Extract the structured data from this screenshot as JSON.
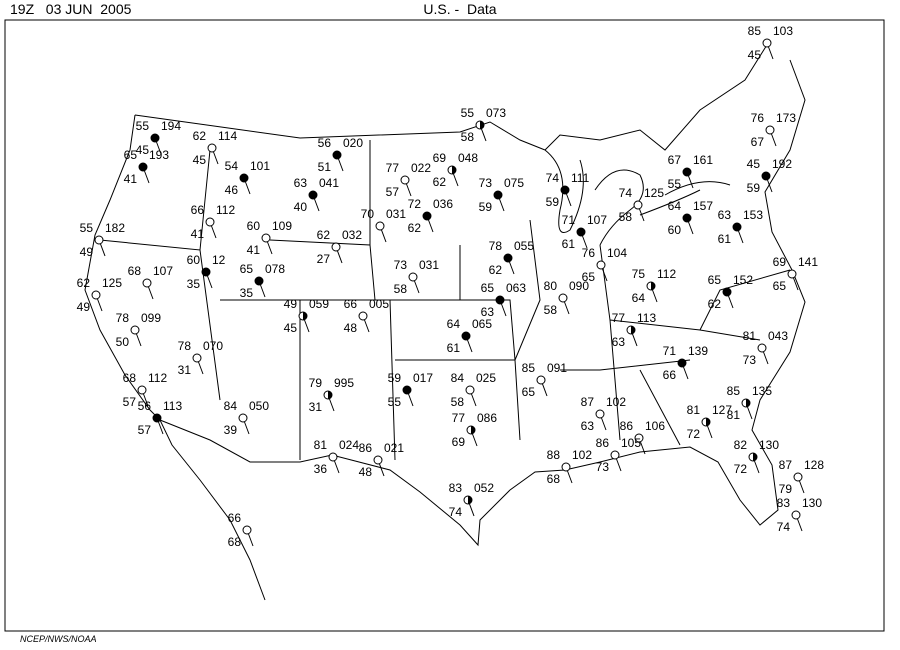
{
  "header": {
    "time": "19Z   03 JUN  2005",
    "title": "U.S. -  Data"
  },
  "footer": "NCEP/NWS/NOAA",
  "stations": [
    {
      "temp": "55",
      "pressure": "194",
      "dewpoint": "45"
    },
    {
      "temp": "65",
      "pressure": "193",
      "dewpoint": "41"
    },
    {
      "temp": "62",
      "pressure": "114",
      "dewpoint": "45"
    },
    {
      "temp": "55",
      "pressure": "182",
      "dewpoint": "49"
    },
    {
      "temp": "68",
      "pressure": "107"
    },
    {
      "temp": "60",
      "pressure": "12",
      "dewpoint": "35"
    },
    {
      "temp": "62",
      "pressure": "125",
      "dewpoint": "49"
    },
    {
      "temp": "78",
      "pressure": "099",
      "dewpoint": "50"
    },
    {
      "temp": "78",
      "pressure": "070",
      "dewpoint": "31"
    },
    {
      "temp": "68",
      "pressure": "112",
      "dewpoint": "57"
    },
    {
      "temp": "56",
      "pressure": "113",
      "dewpoint": "57"
    },
    {
      "temp": "84",
      "pressure": "050",
      "dewpoint": "39"
    },
    {
      "temp": "66",
      "pressure": "112",
      "dewpoint": "41"
    },
    {
      "temp": "60",
      "pressure": "109",
      "dewpoint": "41"
    },
    {
      "temp": "65",
      "pressure": "078",
      "dewpoint": "35"
    },
    {
      "temp": "54",
      "pressure": "101",
      "dewpoint": "46"
    },
    {
      "temp": "63",
      "pressure": "041",
      "dewpoint": "40"
    },
    {
      "temp": "56",
      "pressure": "020",
      "dewpoint": "51"
    },
    {
      "temp": "77",
      "pressure": "022",
      "dewpoint": "57"
    },
    {
      "temp": "69",
      "pressure": "048",
      "dewpoint": "62"
    },
    {
      "temp": "55",
      "pressure": "073",
      "dewpoint": "58"
    },
    {
      "temp": "70",
      "pressure": "031"
    },
    {
      "temp": "62",
      "pressure": "032",
      "dewpoint": "27"
    },
    {
      "temp": "72",
      "pressure": "036",
      "dewpoint": "62"
    },
    {
      "temp": "73",
      "pressure": "075",
      "dewpoint": "59"
    },
    {
      "temp": "73",
      "pressure": "031",
      "dewpoint": "58"
    },
    {
      "temp": "78",
      "pressure": "055",
      "dewpoint": "62"
    },
    {
      "temp": "65",
      "pressure": "063",
      "dewpoint": "63"
    },
    {
      "temp": "64",
      "pressure": "065",
      "dewpoint": "61"
    },
    {
      "temp": "49",
      "pressure": "059",
      "dewpoint": "45"
    },
    {
      "temp": "66",
      "pressure": "005",
      "dewpoint": "48"
    },
    {
      "temp": "79",
      "pressure": "995",
      "dewpoint": "31"
    },
    {
      "temp": "59",
      "pressure": "017",
      "dewpoint": "55"
    },
    {
      "temp": "84",
      "pressure": "025",
      "dewpoint": "58"
    },
    {
      "temp": "77",
      "pressure": "086",
      "dewpoint": "69"
    },
    {
      "temp": "81",
      "pressure": "024",
      "dewpoint": "36"
    },
    {
      "temp": "86",
      "pressure": "021",
      "dewpoint": "48"
    },
    {
      "temp": "83",
      "pressure": "052",
      "dewpoint": "74"
    },
    {
      "temp": "74",
      "pressure": "111",
      "dewpoint": "59"
    },
    {
      "temp": "71",
      "pressure": "107",
      "dewpoint": "61"
    },
    {
      "temp": "80",
      "pressure": "090",
      "dewpoint": "58"
    },
    {
      "temp": "76",
      "pressure": "104",
      "dewpoint": "65"
    },
    {
      "temp": "74",
      "pressure": "125",
      "dewpoint": "58"
    },
    {
      "temp": "75",
      "pressure": "112",
      "dewpoint": "64"
    },
    {
      "temp": "77",
      "pressure": "113",
      "dewpoint": "63"
    },
    {
      "temp": "67",
      "pressure": "161",
      "dewpoint": "55"
    },
    {
      "temp": "64",
      "pressure": "157",
      "dewpoint": "60"
    },
    {
      "temp": "63",
      "pressure": "153",
      "dewpoint": "61"
    },
    {
      "temp": "45",
      "pressure": "192",
      "dewpoint": "59"
    },
    {
      "temp": "85",
      "pressure": "103",
      "dewpoint": "45"
    },
    {
      "temp": "76",
      "pressure": "173",
      "dewpoint": "67"
    },
    {
      "temp": "65",
      "pressure": "152",
      "dewpoint": "62"
    },
    {
      "temp": "69",
      "pressure": "141",
      "dewpoint": "65"
    },
    {
      "temp": "71",
      "pressure": "139",
      "dewpoint": "66"
    },
    {
      "temp": "81",
      "pressure": "043",
      "dewpoint": "73"
    },
    {
      "temp": "85",
      "pressure": "135",
      "dewpoint": "81"
    },
    {
      "temp": "81",
      "pressure": "127",
      "dewpoint": "72"
    },
    {
      "temp": "82",
      "pressure": "130",
      "dewpoint": "72"
    },
    {
      "temp": "83",
      "pressure": "130",
      "dewpoint": "74"
    },
    {
      "temp": "87",
      "pressure": "128",
      "dewpoint": "79"
    },
    {
      "temp": "85",
      "pressure": "091",
      "dewpoint": "65"
    },
    {
      "temp": "87",
      "pressure": "102",
      "dewpoint": "63"
    },
    {
      "temp": "86",
      "pressure": "106"
    },
    {
      "temp": "88",
      "pressure": "102",
      "dewpoint": "68"
    },
    {
      "temp": "86",
      "pressure": "105",
      "dewpoint": "73"
    },
    {
      "temp": "66",
      "dewpoint": "68"
    }
  ]
}
